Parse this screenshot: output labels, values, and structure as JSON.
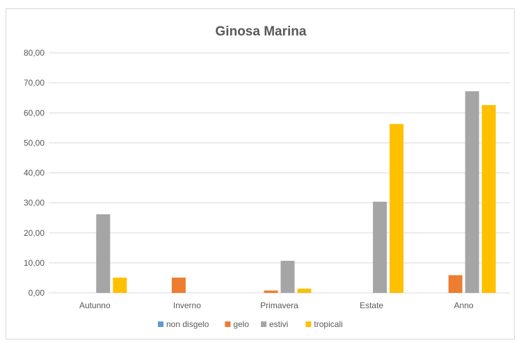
{
  "chart_data": {
    "type": "bar",
    "title": "Ginosa Marina",
    "xlabel": "",
    "ylabel": "",
    "categories": [
      "Autunno",
      "Inverno",
      "Primavera",
      "Estate",
      "Anno"
    ],
    "ylim": [
      0,
      80
    ],
    "yticks": [
      "0,00",
      "10,00",
      "20,00",
      "30,00",
      "40,00",
      "50,00",
      "60,00",
      "70,00",
      "80,00"
    ],
    "grid": true,
    "legend_position": "bottom",
    "series": [
      {
        "name": "non disgelo",
        "color": "#5b9bd5",
        "values": [
          0,
          0,
          0,
          0,
          0
        ]
      },
      {
        "name": "gelo",
        "color": "#ed7d31",
        "values": [
          0,
          5.1,
          0.8,
          0,
          5.9
        ]
      },
      {
        "name": "estivi",
        "color": "#a5a5a5",
        "values": [
          26.2,
          0,
          10.7,
          30.4,
          67.2
        ]
      },
      {
        "name": "tropicali",
        "color": "#ffc000",
        "values": [
          5.1,
          0,
          1.4,
          56.3,
          62.6
        ]
      }
    ]
  }
}
